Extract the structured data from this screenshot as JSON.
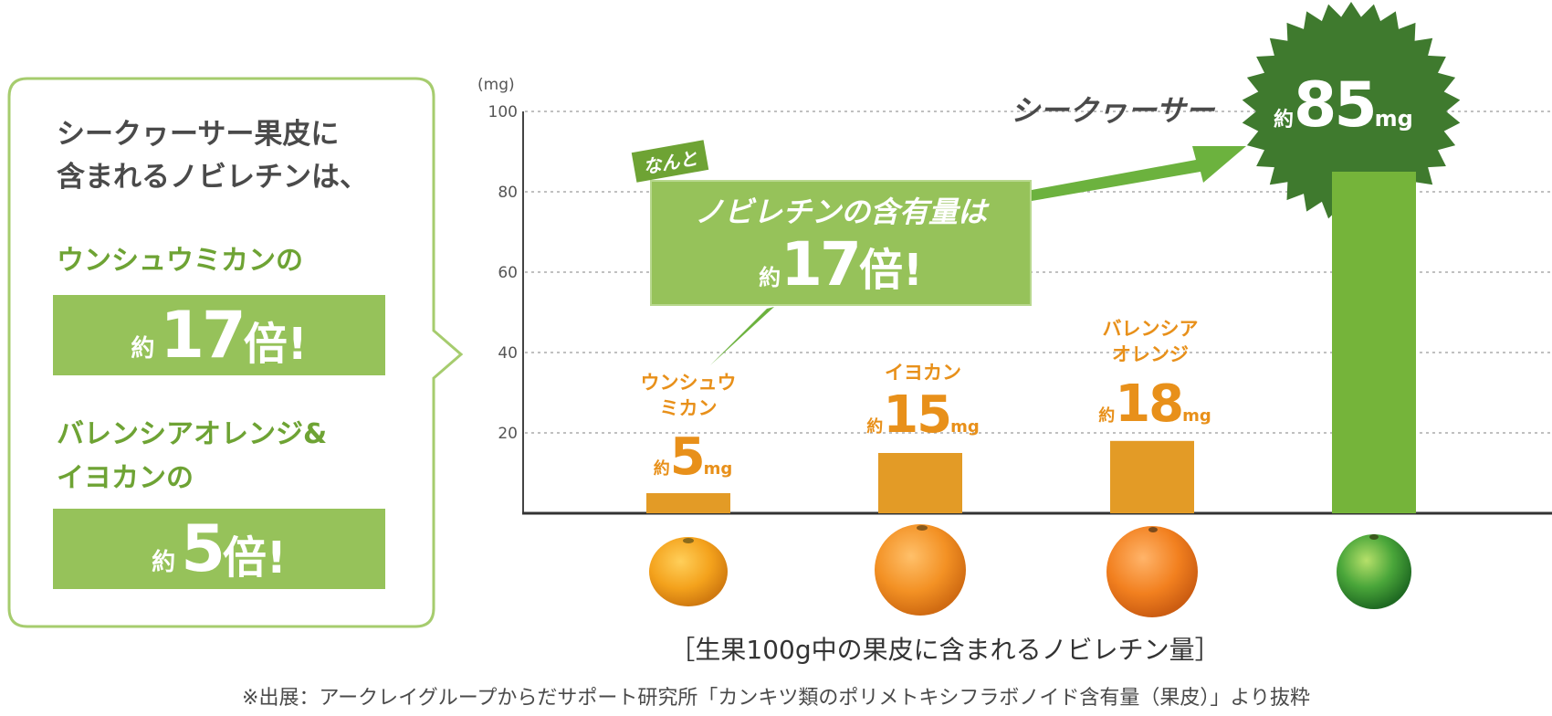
{
  "callout": {
    "line1": "シークヮーサー果皮に",
    "line2": "含まれるノビレチンは、",
    "compare1": "ウンシュウミカンの",
    "times1": {
      "prefix": "約",
      "number": "17",
      "suffix": "倍!"
    },
    "compare2a": "バレンシアオレンジ&",
    "compare2b": "イヨカンの",
    "times2": {
      "prefix": "約",
      "number": "5",
      "suffix": "倍!"
    }
  },
  "chart_data": {
    "type": "bar",
    "ylabel": "(mg)",
    "ylim": [
      0,
      100
    ],
    "yticks": [
      20,
      40,
      60,
      80,
      100
    ],
    "grid": true,
    "categories": [
      "ウンシュウ\nミカン",
      "イヨカン",
      "バレンシア\nオレンジ",
      "シークヮーサー"
    ],
    "values": [
      5,
      15,
      18,
      85
    ],
    "value_labels": [
      {
        "prefix": "約",
        "number": "5",
        "unit": "mg"
      },
      {
        "prefix": "約",
        "number": "15",
        "unit": "mg"
      },
      {
        "prefix": "約",
        "number": "18",
        "unit": "mg"
      },
      {
        "prefix": "約",
        "number": "85",
        "unit": "mg"
      }
    ],
    "colors": [
      "#e39b26",
      "#e39b26",
      "#e39b26",
      "#75b43a"
    ],
    "caption": "［生果100g中の果皮に含まれるノビレチン量］"
  },
  "note": {
    "tag": "なんと",
    "line1": "ノビレチンの含有量は",
    "prefix": "約",
    "number": "17",
    "suffix": "倍!"
  },
  "highlight": {
    "name": "シークヮーサー"
  },
  "source": "※出展：アークレイグループからだサポート研究所「カンキツ類のポリメトキシフラボノイド含有量（果皮）」より抜粋",
  "icons": [
    "mandarin-fruit-icon",
    "iyokan-fruit-icon",
    "orange-fruit-icon",
    "shikuwasa-fruit-icon"
  ],
  "palette": {
    "green_box": "#96c25a",
    "green_border": "#8bc34a",
    "orange": "#e39b26",
    "bar_green": "#75b43a",
    "badge_green": "#3f7a2e"
  }
}
